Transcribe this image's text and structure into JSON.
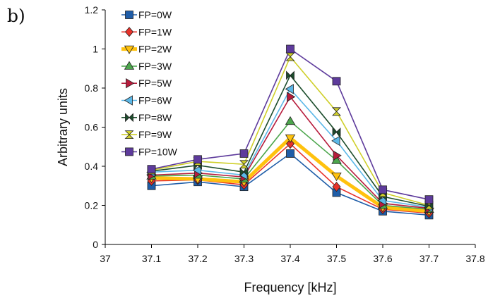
{
  "panel_label": "b)",
  "chart_data": {
    "type": "line",
    "xlabel": "Frequency [kHz]",
    "ylabel": "Arbitrary units",
    "xlim": [
      37,
      37.8
    ],
    "ylim": [
      0,
      1.2
    ],
    "xticks": [
      "37",
      "37.1",
      "37.2",
      "37.3",
      "37.4",
      "37.5",
      "37.6",
      "37.7",
      "37.8"
    ],
    "yticks": [
      "0",
      "0.2",
      "0.4",
      "0.6",
      "0.8",
      "1",
      "1.2"
    ],
    "grid": false,
    "legend_position": "top-left",
    "x": [
      37.1,
      37.2,
      37.3,
      37.4,
      37.5,
      37.6,
      37.7
    ],
    "series": [
      {
        "name": "FP=0W",
        "color": "#1F5DA8",
        "marker": "square",
        "values": [
          0.3,
          0.32,
          0.295,
          0.465,
          0.265,
          0.17,
          0.15
        ]
      },
      {
        "name": "FP=1W",
        "color": "#E8322A",
        "marker": "diamond",
        "values": [
          0.325,
          0.33,
          0.305,
          0.515,
          0.295,
          0.18,
          0.16
        ]
      },
      {
        "name": "FP=2W",
        "color": "#FFC20E",
        "marker": "triangle-down",
        "values": [
          0.34,
          0.335,
          0.32,
          0.545,
          0.35,
          0.19,
          0.17
        ]
      },
      {
        "name": "FP=3W",
        "color": "#4CA64C",
        "marker": "triangle-up",
        "values": [
          0.35,
          0.355,
          0.335,
          0.63,
          0.43,
          0.2,
          0.18
        ]
      },
      {
        "name": "FP=5W",
        "color": "#B71C3C",
        "marker": "triangle-right",
        "values": [
          0.355,
          0.365,
          0.345,
          0.755,
          0.455,
          0.21,
          0.185
        ]
      },
      {
        "name": "FP=6W",
        "color": "#5BB8E8",
        "marker": "triangle-left",
        "values": [
          0.37,
          0.38,
          0.355,
          0.795,
          0.53,
          0.225,
          0.19
        ]
      },
      {
        "name": "FP=8W",
        "color": "#1C4D2C",
        "marker": "bowtie",
        "values": [
          0.375,
          0.405,
          0.37,
          0.865,
          0.575,
          0.245,
          0.195
        ]
      },
      {
        "name": "FP=9W",
        "color": "#CFCF2A",
        "marker": "hourglass",
        "values": [
          0.38,
          0.425,
          0.41,
          0.96,
          0.68,
          0.265,
          0.2
        ]
      },
      {
        "name": "FP=10W",
        "color": "#5E3B9C",
        "marker": "square",
        "values": [
          0.385,
          0.435,
          0.465,
          1.0,
          0.835,
          0.28,
          0.23
        ]
      }
    ]
  }
}
